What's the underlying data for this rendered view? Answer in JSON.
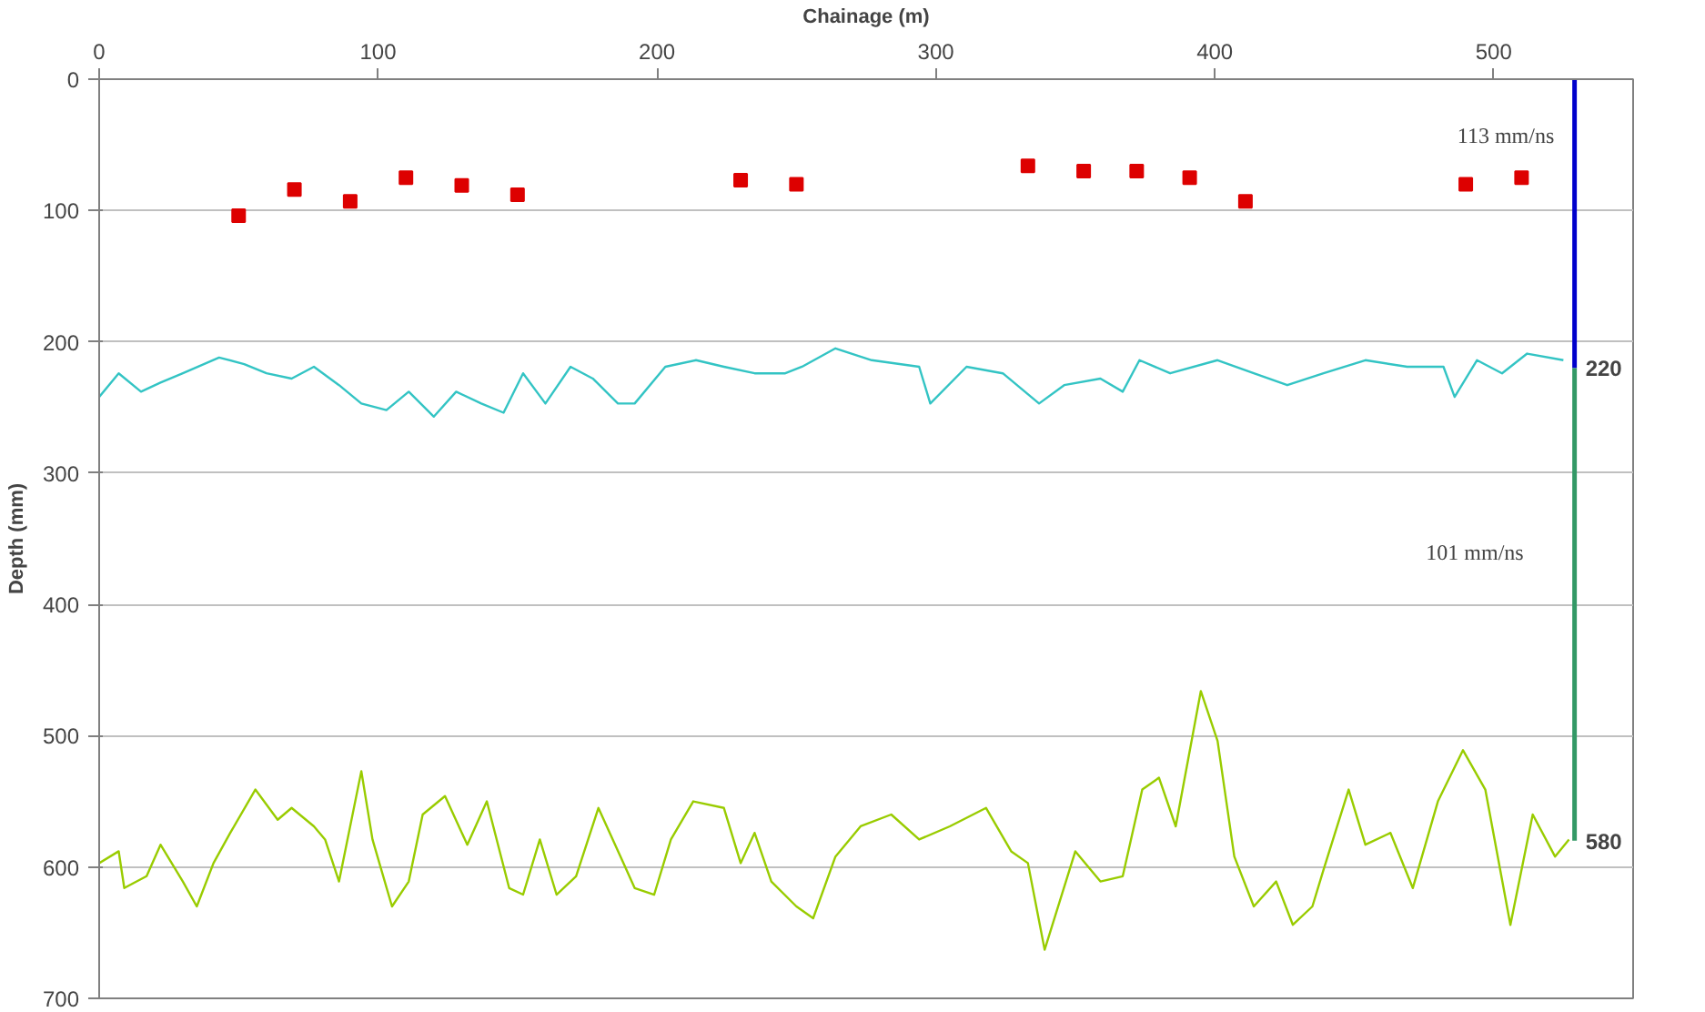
{
  "chart_data": {
    "type": "line",
    "xlabel": "Chainage (m)",
    "ylabel": "Depth (mm)",
    "xlim": [
      0,
      550
    ],
    "xticks": [
      0,
      100,
      200,
      300,
      400,
      500
    ],
    "ylim": [
      700,
      0
    ],
    "yticks": [
      0,
      100,
      200,
      300,
      400,
      500,
      600,
      700
    ],
    "grid": "y",
    "series": [
      {
        "type": "scatter",
        "marker": "square",
        "color": "#dd0000",
        "x": [
          50,
          70,
          90,
          110,
          130,
          150,
          230,
          250,
          333,
          353,
          372,
          391,
          411,
          490,
          510
        ],
        "values": [
          104,
          84,
          93,
          75,
          81,
          88,
          77,
          80,
          66,
          70,
          70,
          75,
          93,
          80,
          75
        ]
      },
      {
        "color": "#33c4c4",
        "x": [
          0,
          7,
          15,
          22,
          30,
          43,
          52,
          60,
          69,
          77,
          86,
          94,
          103,
          111,
          120,
          128,
          137,
          145,
          152,
          160,
          169,
          177,
          186,
          192,
          203,
          214,
          224,
          235,
          246,
          252,
          264,
          277,
          294,
          298,
          311,
          324,
          337,
          346,
          359,
          367,
          373,
          384,
          401,
          414,
          426,
          439,
          454,
          469,
          482,
          486,
          494,
          503,
          512,
          525
        ],
        "values": [
          242,
          224,
          238,
          231,
          224,
          212,
          217,
          224,
          228,
          219,
          233,
          247,
          252,
          238,
          257,
          238,
          247,
          254,
          224,
          247,
          219,
          228,
          247,
          247,
          219,
          214,
          219,
          224,
          224,
          219,
          205,
          214,
          219,
          247,
          219,
          224,
          247,
          233,
          228,
          238,
          214,
          224,
          214,
          224,
          233,
          224,
          214,
          219,
          219,
          242,
          214,
          224,
          209,
          214
        ]
      },
      {
        "color": "#99cc00",
        "x": [
          0,
          7,
          9,
          17,
          22,
          30,
          35,
          41,
          47,
          56,
          64,
          69,
          77,
          81,
          86,
          94,
          98,
          105,
          111,
          116,
          124,
          132,
          139,
          147,
          152,
          158,
          164,
          171,
          179,
          188,
          192,
          199,
          205,
          213,
          224,
          230,
          235,
          241,
          250,
          256,
          264,
          273,
          284,
          294,
          305,
          318,
          327,
          333,
          339,
          350,
          359,
          367,
          374,
          380,
          386,
          395,
          401,
          407,
          414,
          422,
          428,
          435,
          439,
          448,
          454,
          463,
          471,
          480,
          489,
          497,
          506,
          514,
          522,
          527
        ],
        "values": [
          597,
          588,
          616,
          607,
          583,
          611,
          630,
          597,
          574,
          541,
          564,
          555,
          569,
          579,
          611,
          527,
          579,
          630,
          611,
          560,
          546,
          583,
          550,
          616,
          621,
          579,
          621,
          607,
          555,
          597,
          616,
          621,
          579,
          550,
          555,
          597,
          574,
          611,
          630,
          639,
          592,
          569,
          560,
          579,
          569,
          555,
          588,
          597,
          663,
          588,
          611,
          607,
          541,
          532,
          569,
          466,
          504,
          592,
          630,
          611,
          644,
          630,
          602,
          541,
          583,
          574,
          616,
          550,
          511,
          541,
          644,
          560,
          592,
          579
        ]
      },
      {
        "color": "#0000cc",
        "x": [
          529,
          529
        ],
        "values": [
          0,
          220
        ]
      },
      {
        "color": "#339966",
        "x": [
          529,
          529
        ],
        "values": [
          220,
          580
        ]
      }
    ],
    "annotations": [
      "113 mm/ns",
      "101 mm/ns",
      {
        "text": "220",
        "x": 529,
        "y": 220
      },
      {
        "text": "580",
        "x": 529,
        "y": 580
      }
    ]
  }
}
